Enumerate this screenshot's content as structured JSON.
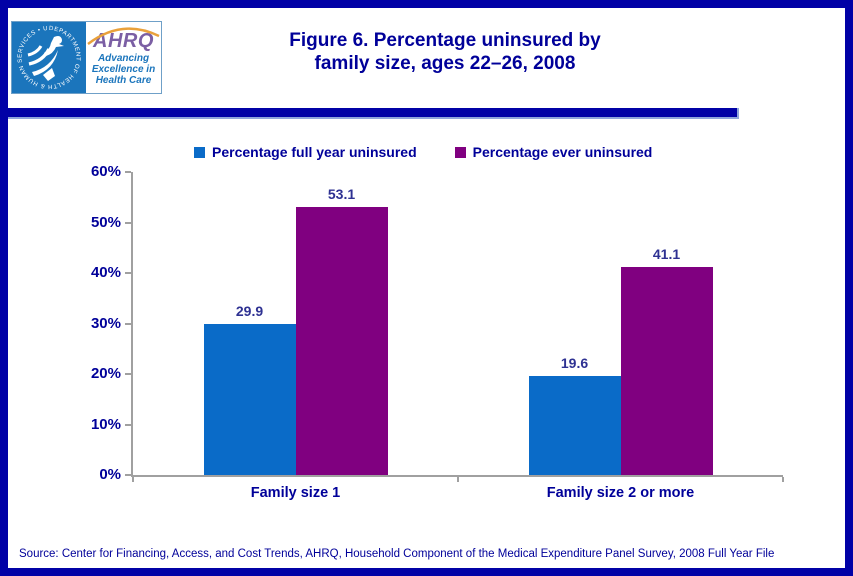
{
  "header": {
    "logo": {
      "seal_text": "DEPARTMENT OF HEALTH & HUMAN SERVICES • USA",
      "acronym": "AHRQ",
      "tagline_lines": [
        "Advancing",
        "Excellence in",
        "Health Care"
      ]
    },
    "title_line1": "Figure 6. Percentage uninsured by",
    "title_line2": "family size, ages 22–26, 2008"
  },
  "chart_data": {
    "type": "bar",
    "title": "Figure 6. Percentage uninsured by family size, ages 22–26, 2008",
    "categories": [
      "Family size 1",
      "Family size 2 or more"
    ],
    "series": [
      {
        "name": "Percentage full year uninsured",
        "color": "#0A6BC8",
        "values": [
          29.9,
          19.6
        ]
      },
      {
        "name": "Percentage ever uninsured",
        "color": "#800080",
        "values": [
          53.1,
          41.1
        ]
      }
    ],
    "xlabel": "",
    "ylabel": "",
    "ylim": [
      0,
      60
    ],
    "yticks": [
      "0%",
      "10%",
      "20%",
      "30%",
      "40%",
      "50%",
      "60%"
    ],
    "grid": false,
    "legend_position": "top-center",
    "value_labels": true
  },
  "source": "Source: Center for Financing, Access, and Cost Trends, AHRQ, Household Component of the Medical Expenditure Panel Survey, 2008 Full Year File",
  "colors": {
    "frame_navy": "#0101A6",
    "title_navy": "#000099",
    "value_label_navy": "#2E3192",
    "bar_blue": "#0A6BC8",
    "bar_purple": "#800080",
    "axis_gray": "#A0A0A0",
    "hhs_blue": "#1B75BC",
    "ahrq_purple": "#7B5FA4",
    "arc_orange": "#E9A13B"
  }
}
